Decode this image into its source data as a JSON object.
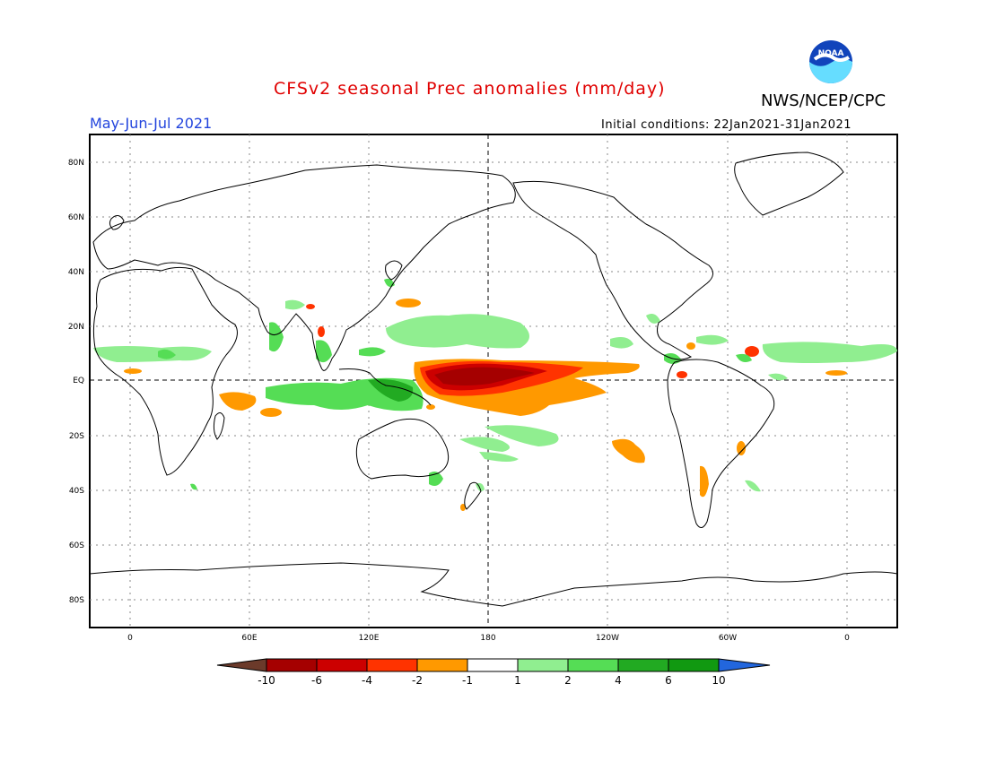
{
  "header": {
    "title": "CFSv2 seasonal Prec anomalies (mm/day)",
    "agency": "NWS/NCEP/CPC",
    "season": "May-Jun-Jul 2021",
    "initial_conditions": "Initial conditions: 22Jan2021-31Jan2021"
  },
  "logo": {
    "icon": "noaa-logo-icon",
    "text": "NOAA"
  },
  "axes": {
    "lat_labels": [
      "80N",
      "60N",
      "40N",
      "20N",
      "EQ",
      "20S",
      "40S",
      "60S",
      "80S"
    ],
    "lon_labels": [
      "0",
      "60E",
      "120E",
      "180",
      "120W",
      "60W",
      "0"
    ]
  },
  "colorbar": {
    "labels": [
      "-10",
      "-6",
      "-4",
      "-2",
      "-1",
      "1",
      "2",
      "4",
      "6",
      "10"
    ],
    "colors": [
      "#6b3a2a",
      "#a50000",
      "#cc0000",
      "#ff3300",
      "#ff9900",
      "#ffffff",
      "#90ee90",
      "#55dd55",
      "#22aa22",
      "#119911",
      "#2266dd"
    ]
  },
  "palette": {
    "brown": "#6b3a2a",
    "dark_red": "#a50000",
    "red": "#cc0000",
    "orange_red": "#ff3300",
    "orange": "#ff9900",
    "light_green": "#90ee90",
    "green": "#55dd55",
    "dark_green": "#22aa22"
  }
}
